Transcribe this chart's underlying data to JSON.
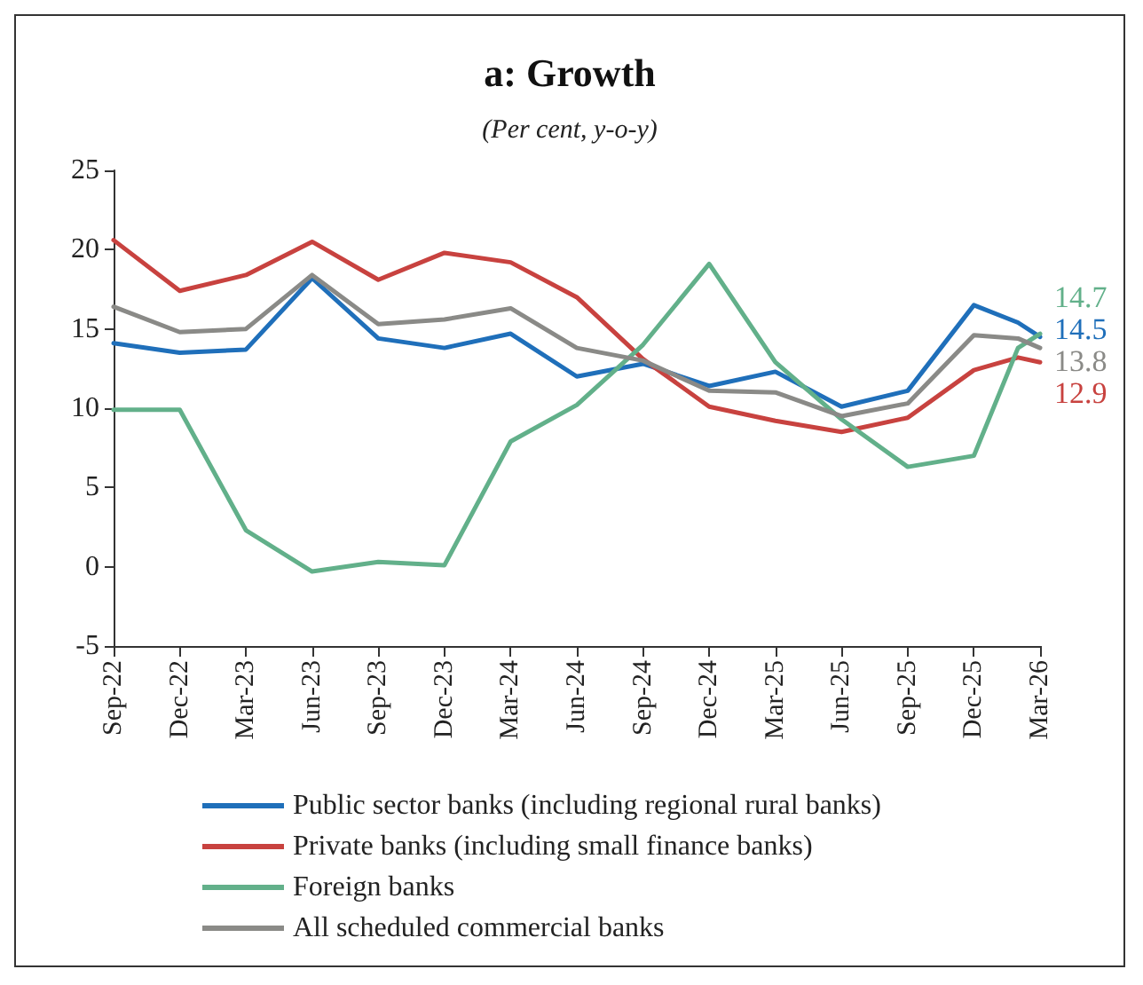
{
  "chart_data": {
    "type": "line",
    "title": "a: Growth",
    "subtitle": "(Per cent, y-o-y)",
    "x": [
      "2022-09",
      "2022-12",
      "2023-03",
      "2023-06",
      "2023-09",
      "2023-12",
      "2024-03",
      "2024-06",
      "2024-09",
      "2024-12",
      "2025-03",
      "2025-06",
      "2025-09",
      "2025-12",
      "2026-02",
      "2026-03"
    ],
    "xlim": [
      "2022-09",
      "2026-03"
    ],
    "xticks": [
      {
        "value": "2022-09",
        "label": "Sep-22"
      },
      {
        "value": "2022-12",
        "label": "Dec-22"
      },
      {
        "value": "2023-03",
        "label": "Mar-23"
      },
      {
        "value": "2023-06",
        "label": "Jun-23"
      },
      {
        "value": "2023-09",
        "label": "Sep-23"
      },
      {
        "value": "2023-12",
        "label": "Dec-23"
      },
      {
        "value": "2024-03",
        "label": "Mar-24"
      },
      {
        "value": "2024-06",
        "label": "Jun-24"
      },
      {
        "value": "2024-09",
        "label": "Sep-24"
      },
      {
        "value": "2024-12",
        "label": "Dec-24"
      },
      {
        "value": "2025-03",
        "label": "Mar-25"
      },
      {
        "value": "2025-06",
        "label": "Jun-25"
      },
      {
        "value": "2025-09",
        "label": "Sep-25"
      },
      {
        "value": "2025-12",
        "label": "Dec-25"
      },
      {
        "value": "2026-03",
        "label": "Mar-26"
      }
    ],
    "ylim": [
      -5,
      25
    ],
    "yticks": [
      -5,
      0,
      5,
      10,
      15,
      20,
      25
    ],
    "series": [
      {
        "name": "Public sector banks (including regional rural banks)",
        "color": "#1f6fba",
        "values": [
          14.1,
          13.5,
          13.7,
          18.2,
          14.4,
          13.8,
          14.7,
          12.0,
          12.8,
          11.4,
          12.3,
          10.1,
          11.1,
          16.5,
          15.4,
          14.5
        ],
        "value_labels": [
          null,
          null,
          null,
          null,
          null,
          null,
          null,
          null,
          null,
          null,
          null,
          null,
          null,
          null,
          null,
          "14.5"
        ]
      },
      {
        "name": "Private banks (including small finance banks)",
        "color": "#c8423f",
        "values": [
          20.6,
          17.4,
          18.4,
          20.5,
          18.1,
          19.8,
          19.2,
          17.0,
          13.1,
          10.1,
          9.2,
          8.5,
          9.4,
          12.4,
          13.2,
          12.9
        ],
        "value_labels": [
          null,
          null,
          null,
          null,
          null,
          null,
          null,
          null,
          null,
          null,
          null,
          null,
          null,
          null,
          null,
          "12.9"
        ]
      },
      {
        "name": "Foreign banks",
        "color": "#62b08a",
        "values": [
          9.9,
          9.9,
          2.3,
          -0.3,
          0.3,
          0.1,
          7.9,
          10.2,
          14.0,
          19.1,
          12.9,
          9.3,
          6.3,
          7.0,
          13.8,
          14.7
        ],
        "value_labels": [
          null,
          null,
          null,
          null,
          null,
          null,
          null,
          null,
          null,
          null,
          null,
          null,
          null,
          null,
          null,
          "14.7"
        ]
      },
      {
        "name": "All scheduled commercial banks",
        "color": "#8a8a87",
        "values": [
          16.4,
          14.8,
          15.0,
          18.4,
          15.3,
          15.6,
          16.3,
          13.8,
          13.0,
          11.1,
          11.0,
          9.5,
          10.3,
          14.6,
          14.4,
          13.8
        ],
        "value_labels": [
          null,
          null,
          null,
          null,
          null,
          null,
          null,
          null,
          null,
          null,
          null,
          null,
          null,
          null,
          null,
          "13.8"
        ]
      }
    ],
    "legend": "bottom",
    "grid": false,
    "marker": "none",
    "line_style": "solid"
  }
}
